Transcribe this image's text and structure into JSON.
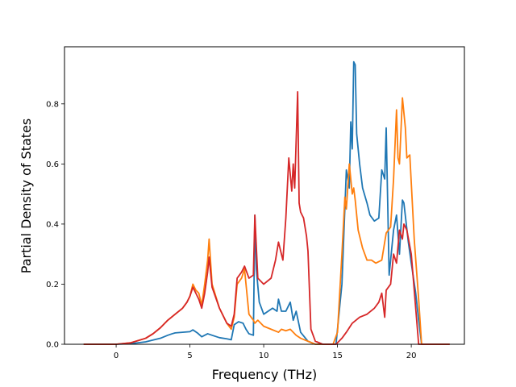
{
  "chart_data": {
    "type": "line",
    "title": "",
    "xlabel": "Frequency (THz)",
    "ylabel": "Partial Density of States",
    "xlim": [
      -3.5,
      23.6
    ],
    "ylim": [
      0,
      0.99
    ],
    "xticks": [
      0,
      5,
      10,
      15,
      20
    ],
    "yticks": [
      0.0,
      0.2,
      0.4,
      0.6,
      0.8
    ],
    "xtick_labels": [
      "0",
      "5",
      "10",
      "15",
      "20"
    ],
    "ytick_labels": [
      "0.0",
      "0.2",
      "0.4",
      "0.6",
      "0.8"
    ],
    "grid": false,
    "legend": "none",
    "series": [
      {
        "color": "#1f77b4",
        "x": [
          -2.2,
          0.0,
          1.0,
          2.0,
          3.0,
          3.5,
          3.8,
          4.0,
          4.5,
          5.0,
          5.2,
          5.5,
          5.8,
          6.0,
          6.2,
          6.5,
          7.0,
          7.5,
          7.8,
          8.0,
          8.3,
          8.6,
          8.8,
          9.0,
          9.3,
          9.4,
          9.5,
          9.7,
          10.0,
          10.3,
          10.6,
          10.9,
          11.0,
          11.2,
          11.5,
          11.8,
          12.0,
          12.2,
          12.5,
          13.0,
          13.5,
          14.0,
          14.6,
          14.9,
          15.3,
          15.6,
          15.8,
          15.9,
          16.0,
          16.1,
          16.2,
          16.3,
          16.5,
          16.7,
          17.0,
          17.2,
          17.5,
          17.8,
          18.0,
          18.2,
          18.3,
          18.5,
          18.8,
          19.0,
          19.2,
          19.4,
          19.5,
          19.8,
          20.0,
          20.3,
          20.5,
          20.7,
          21.0,
          22.0,
          22.6
        ],
        "y": [
          0.0,
          0.0,
          0.002,
          0.008,
          0.02,
          0.03,
          0.035,
          0.038,
          0.04,
          0.042,
          0.048,
          0.038,
          0.025,
          0.03,
          0.035,
          0.03,
          0.022,
          0.018,
          0.015,
          0.065,
          0.075,
          0.07,
          0.05,
          0.035,
          0.03,
          0.43,
          0.25,
          0.14,
          0.1,
          0.11,
          0.12,
          0.11,
          0.15,
          0.11,
          0.11,
          0.14,
          0.08,
          0.11,
          0.04,
          0.01,
          0.0,
          0.0,
          0.0,
          0.0,
          0.2,
          0.58,
          0.52,
          0.74,
          0.65,
          0.94,
          0.93,
          0.7,
          0.6,
          0.52,
          0.47,
          0.43,
          0.41,
          0.42,
          0.58,
          0.55,
          0.72,
          0.23,
          0.38,
          0.43,
          0.3,
          0.48,
          0.47,
          0.34,
          0.27,
          0.17,
          0.08,
          0.0,
          0.0,
          0.0,
          0.0
        ]
      },
      {
        "color": "#ff7f0e",
        "x": [
          -2.2,
          0.0,
          1.0,
          2.0,
          2.5,
          3.0,
          3.5,
          4.0,
          4.5,
          4.8,
          5.0,
          5.2,
          5.4,
          5.6,
          5.8,
          6.0,
          6.2,
          6.3,
          6.5,
          7.0,
          7.5,
          7.8,
          8.0,
          8.2,
          8.5,
          8.7,
          9.0,
          9.3,
          9.4,
          9.6,
          10.0,
          10.5,
          11.0,
          11.2,
          11.5,
          11.8,
          12.0,
          12.2,
          12.5,
          13.0,
          13.5,
          14.0,
          14.7,
          15.0,
          15.3,
          15.5,
          15.6,
          15.8,
          16.0,
          16.1,
          16.2,
          16.4,
          16.7,
          17.0,
          17.3,
          17.6,
          18.0,
          18.3,
          18.6,
          18.8,
          19.0,
          19.1,
          19.2,
          19.4,
          19.6,
          19.7,
          19.9,
          20.2,
          20.5,
          20.7,
          21.0,
          22.0,
          22.6
        ],
        "y": [
          0.0,
          0.0,
          0.005,
          0.02,
          0.035,
          0.055,
          0.08,
          0.1,
          0.12,
          0.14,
          0.16,
          0.2,
          0.18,
          0.17,
          0.13,
          0.2,
          0.28,
          0.35,
          0.2,
          0.12,
          0.07,
          0.05,
          0.09,
          0.2,
          0.22,
          0.25,
          0.1,
          0.08,
          0.07,
          0.08,
          0.06,
          0.05,
          0.04,
          0.05,
          0.045,
          0.05,
          0.04,
          0.03,
          0.02,
          0.01,
          0.0,
          0.0,
          0.0,
          0.04,
          0.3,
          0.49,
          0.45,
          0.6,
          0.5,
          0.52,
          0.48,
          0.38,
          0.32,
          0.28,
          0.28,
          0.27,
          0.28,
          0.37,
          0.39,
          0.55,
          0.78,
          0.62,
          0.6,
          0.82,
          0.72,
          0.62,
          0.63,
          0.35,
          0.15,
          0.0,
          0.0,
          0.0,
          0.0
        ]
      },
      {
        "color": "#d62728",
        "x": [
          -2.2,
          0.0,
          1.0,
          2.0,
          2.5,
          3.0,
          3.5,
          4.0,
          4.5,
          4.8,
          5.0,
          5.2,
          5.4,
          5.6,
          5.8,
          6.0,
          6.2,
          6.3,
          6.5,
          7.0,
          7.5,
          7.8,
          8.0,
          8.2,
          8.5,
          8.7,
          9.0,
          9.3,
          9.4,
          9.6,
          10.0,
          10.5,
          10.8,
          11.0,
          11.3,
          11.5,
          11.7,
          11.9,
          12.0,
          12.1,
          12.3,
          12.4,
          12.5,
          12.7,
          12.9,
          13.0,
          13.2,
          13.5,
          14.0,
          14.9,
          15.3,
          15.6,
          16.0,
          16.5,
          17.0,
          17.5,
          17.8,
          18.0,
          18.2,
          18.3,
          18.6,
          18.8,
          19.0,
          19.2,
          19.4,
          19.5,
          19.7,
          20.0,
          20.3,
          20.5,
          20.7,
          21.0,
          22.0,
          22.6
        ],
        "y": [
          0.0,
          0.0,
          0.005,
          0.02,
          0.035,
          0.055,
          0.08,
          0.1,
          0.12,
          0.14,
          0.16,
          0.19,
          0.17,
          0.15,
          0.12,
          0.17,
          0.24,
          0.29,
          0.19,
          0.12,
          0.07,
          0.06,
          0.1,
          0.22,
          0.24,
          0.26,
          0.22,
          0.23,
          0.43,
          0.22,
          0.2,
          0.22,
          0.28,
          0.34,
          0.28,
          0.42,
          0.62,
          0.51,
          0.6,
          0.52,
          0.84,
          0.47,
          0.44,
          0.42,
          0.36,
          0.31,
          0.05,
          0.01,
          0.0,
          0.0,
          0.02,
          0.04,
          0.07,
          0.09,
          0.1,
          0.12,
          0.14,
          0.17,
          0.09,
          0.18,
          0.2,
          0.3,
          0.27,
          0.38,
          0.35,
          0.4,
          0.38,
          0.3,
          0.12,
          0.0,
          0.0,
          0.0,
          0.0,
          0.0
        ]
      }
    ]
  }
}
